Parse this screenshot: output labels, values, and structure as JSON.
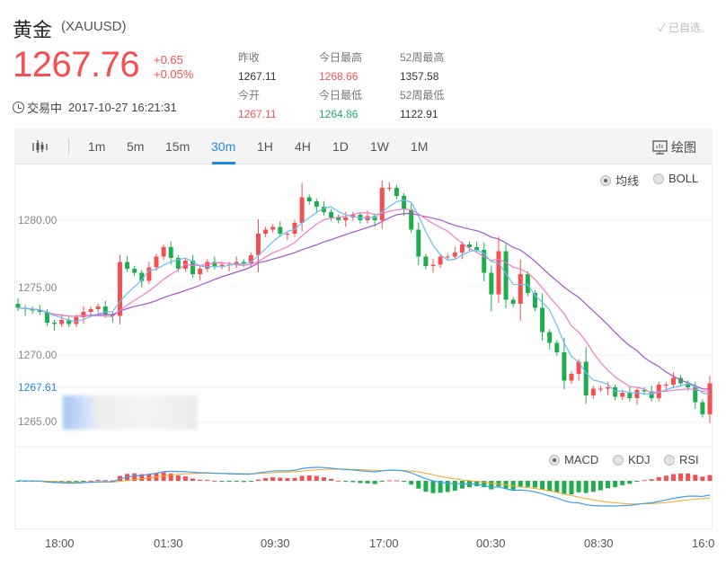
{
  "header": {
    "title": "黄金",
    "symbol": "(XAUUSD)",
    "favorite": "✓ 已自选",
    "price": "1267.76",
    "change": "+0.65",
    "change_pct": "+0.05%",
    "status": "交易中",
    "datetime": "2017-10-27 16:21:31"
  },
  "stats": [
    {
      "label": "昨收",
      "value": "1267.11",
      "color": "normal"
    },
    {
      "label": "今日最高",
      "value": "1268.66",
      "color": "red"
    },
    {
      "label": "52周最高",
      "value": "1357.58",
      "color": "normal"
    },
    {
      "label": "今开",
      "value": "1267.11",
      "color": "red"
    },
    {
      "label": "今日最低",
      "value": "1264.86",
      "color": "green"
    },
    {
      "label": "52周最低",
      "value": "1122.91",
      "color": "normal"
    }
  ],
  "toolbar": {
    "timeframes": [
      "1m",
      "5m",
      "15m",
      "30m",
      "1H",
      "4H",
      "1D",
      "1W",
      "1M"
    ],
    "active": "30m",
    "draw_label": "绘图"
  },
  "indicators": {
    "main": [
      "均线",
      "BOLL"
    ],
    "main_active": "均线",
    "sub": [
      "MACD",
      "KDJ",
      "RSI"
    ],
    "sub_active": "MACD"
  },
  "colors": {
    "up": "#f5504f",
    "down": "#1fae4e",
    "ma5": "#6cbcf5",
    "ma10": "#f579c8",
    "ma20": "#a155c9",
    "dif": "#3aa0f0",
    "dea": "#f5a623",
    "accent": "#1e88e5"
  },
  "chart_data": {
    "type": "candlestick",
    "y_ticks": [
      "1280.00",
      "1275.00",
      "1270.00",
      "1265.00"
    ],
    "y_tick_values": [
      1280,
      1275,
      1270,
      1265
    ],
    "ylim": [
      1263.8,
      1285.2
    ],
    "current_line": {
      "value": 1267.61,
      "label": "1267.61"
    },
    "x_ticks": [
      "18:00",
      "01:30",
      "09:30",
      "17:00",
      "00:30",
      "08:30",
      "16:0"
    ],
    "first_open": 1273.8,
    "closes": [
      1273.5,
      1273.4,
      1273.3,
      1273.2,
      1272.4,
      1272.3,
      1272.6,
      1272.3,
      1272.8,
      1273.2,
      1273.4,
      1273.6,
      1273.0,
      1272.9,
      1276.9,
      1276.4,
      1276.1,
      1275.5,
      1276.5,
      1277.3,
      1278.0,
      1277.2,
      1276.4,
      1277.0,
      1276.0,
      1276.4,
      1276.9,
      1276.6,
      1276.7,
      1276.7,
      1276.9,
      1276.8,
      1277.4,
      1279.0,
      1279.3,
      1279.5,
      1279.0,
      1279.0,
      1279.8,
      1281.7,
      1281.4,
      1281.0,
      1280.6,
      1280.2,
      1280.0,
      1280.2,
      1280.4,
      1280.0,
      1280.3,
      1280.0,
      1282.4,
      1282.4,
      1281.8,
      1280.8,
      1279.3,
      1277.3,
      1276.6,
      1276.7,
      1277.3,
      1277.3,
      1277.6,
      1278.2,
      1278.0,
      1277.8,
      1276.1,
      1274.5,
      1277.7,
      1274.1,
      1273.8,
      1276.0,
      1274.6,
      1273.5,
      1271.7,
      1270.9,
      1270.2,
      1268.1,
      1268.6,
      1269.5,
      1267.0,
      1267.5,
      1267.5,
      1267.6,
      1266.9,
      1267.2,
      1266.8,
      1267.4,
      1267.3,
      1266.8,
      1267.8,
      1267.8,
      1268.3,
      1267.9,
      1267.6,
      1266.5,
      1265.6,
      1267.9
    ]
  }
}
